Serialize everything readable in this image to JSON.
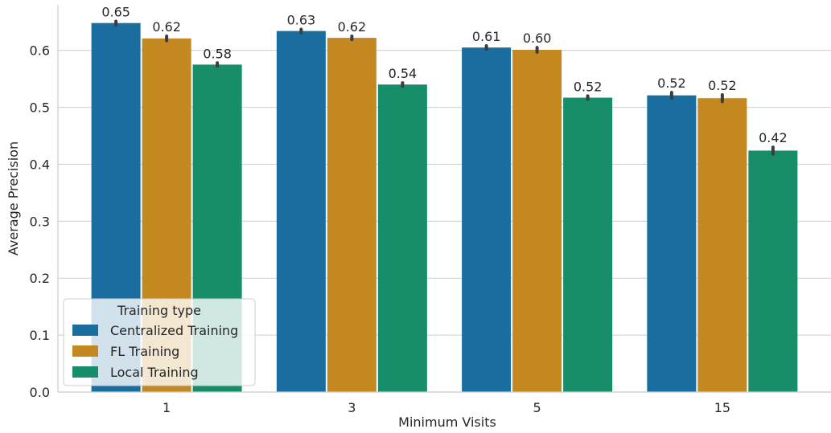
{
  "chart_data": {
    "type": "bar",
    "xlabel": "Minimum Visits",
    "ylabel": "Average Precision",
    "categories": [
      "1",
      "3",
      "5",
      "15"
    ],
    "ylim": [
      0,
      0.68
    ],
    "yticks": [
      "0.0",
      "0.1",
      "0.2",
      "0.3",
      "0.4",
      "0.5",
      "0.6"
    ],
    "grid": "horizontal",
    "legend": {
      "title": "Training type",
      "placement": "lower-left"
    },
    "series": [
      {
        "name": "Centralized Training",
        "color": "#1a6e9f",
        "values": [
          0.648,
          0.634,
          0.605,
          0.521
        ],
        "labels": [
          "0.65",
          "0.63",
          "0.61",
          "0.52"
        ],
        "error": [
          0.003,
          0.003,
          0.003,
          0.005
        ]
      },
      {
        "name": "FL Training",
        "color": "#c48820",
        "values": [
          0.621,
          0.622,
          0.601,
          0.516
        ],
        "labels": [
          "0.62",
          "0.62",
          "0.60",
          "0.52"
        ],
        "error": [
          0.004,
          0.003,
          0.004,
          0.006
        ]
      },
      {
        "name": "Local Training",
        "color": "#178d6a",
        "values": [
          0.575,
          0.54,
          0.517,
          0.424
        ],
        "labels": [
          "0.58",
          "0.54",
          "0.52",
          "0.42"
        ],
        "error": [
          0.003,
          0.003,
          0.003,
          0.006
        ]
      }
    ]
  }
}
